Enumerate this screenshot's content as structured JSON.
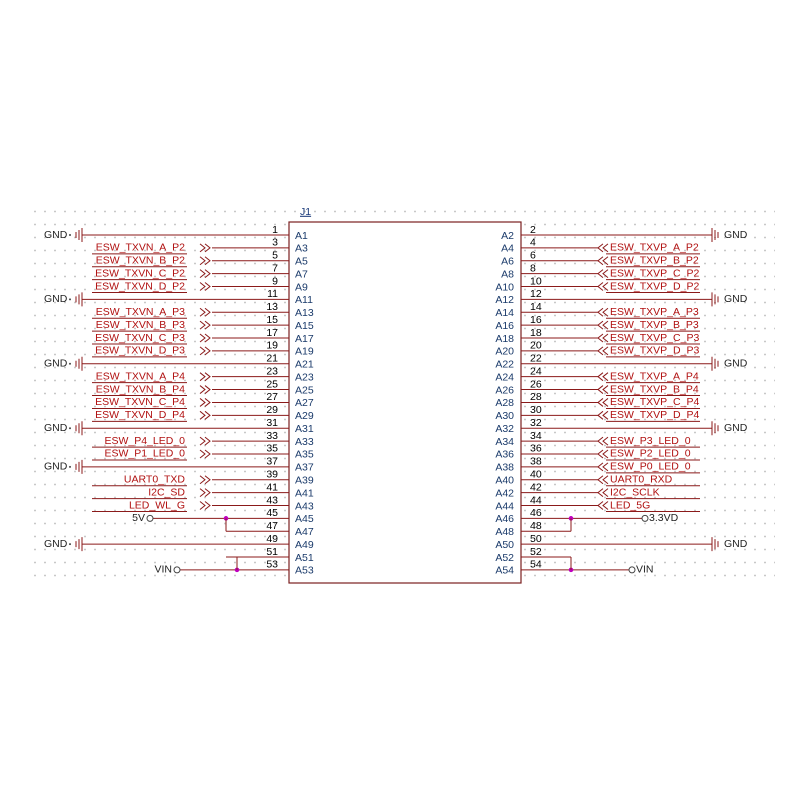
{
  "component": {
    "designator": "J1",
    "left_pins": [
      {
        "number": "1",
        "label": "A1",
        "net": "GND"
      },
      {
        "number": "3",
        "label": "A3",
        "net": "ESW_TXVN_A_P2"
      },
      {
        "number": "5",
        "label": "A5",
        "net": "ESW_TXVN_B_P2"
      },
      {
        "number": "7",
        "label": "A7",
        "net": "ESW_TXVN_C_P2"
      },
      {
        "number": "9",
        "label": "A9",
        "net": "ESW_TXVN_D_P2"
      },
      {
        "number": "11",
        "label": "A11",
        "net": "GND"
      },
      {
        "number": "13",
        "label": "A13",
        "net": "ESW_TXVN_A_P3"
      },
      {
        "number": "15",
        "label": "A15",
        "net": "ESW_TXVN_B_P3"
      },
      {
        "number": "17",
        "label": "A17",
        "net": "ESW_TXVN_C_P3"
      },
      {
        "number": "19",
        "label": "A19",
        "net": "ESW_TXVN_D_P3"
      },
      {
        "number": "21",
        "label": "A21",
        "net": "GND"
      },
      {
        "number": "23",
        "label": "A23",
        "net": "ESW_TXVN_A_P4"
      },
      {
        "number": "25",
        "label": "A25",
        "net": "ESW_TXVN_B_P4"
      },
      {
        "number": "27",
        "label": "A27",
        "net": "ESW_TXVN_C_P4"
      },
      {
        "number": "29",
        "label": "A29",
        "net": "ESW_TXVN_D_P4"
      },
      {
        "number": "31",
        "label": "A31",
        "net": "GND"
      },
      {
        "number": "33",
        "label": "A33",
        "net": "ESW_P4_LED_0"
      },
      {
        "number": "35",
        "label": "A35",
        "net": "ESW_P1_LED_0"
      },
      {
        "number": "37",
        "label": "A37",
        "net": "GND"
      },
      {
        "number": "39",
        "label": "A39",
        "net": "UART0_TXD"
      },
      {
        "number": "41",
        "label": "A41",
        "net": "I2C_SD"
      },
      {
        "number": "43",
        "label": "A43",
        "net": "LED_WL_G"
      },
      {
        "number": "45",
        "label": "A45",
        "net": "5V"
      },
      {
        "number": "47",
        "label": "A47",
        "net": null
      },
      {
        "number": "49",
        "label": "A49",
        "net": "GND"
      },
      {
        "number": "51",
        "label": "A51",
        "net": null
      },
      {
        "number": "53",
        "label": "A53",
        "net": "VIN"
      }
    ],
    "right_pins": [
      {
        "number": "2",
        "label": "A2",
        "net": "GND"
      },
      {
        "number": "4",
        "label": "A4",
        "net": "ESW_TXVP_A_P2"
      },
      {
        "number": "6",
        "label": "A6",
        "net": "ESW_TXVP_B_P2"
      },
      {
        "number": "8",
        "label": "A8",
        "net": "ESW_TXVP_C_P2"
      },
      {
        "number": "10",
        "label": "A10",
        "net": "ESW_TXVP_D_P2"
      },
      {
        "number": "12",
        "label": "A12",
        "net": "GND"
      },
      {
        "number": "14",
        "label": "A14",
        "net": "ESW_TXVP_A_P3"
      },
      {
        "number": "16",
        "label": "A16",
        "net": "ESW_TXVP_B_P3"
      },
      {
        "number": "18",
        "label": "A18",
        "net": "ESW_TXVP_C_P3"
      },
      {
        "number": "20",
        "label": "A20",
        "net": "ESW_TXVP_D_P3"
      },
      {
        "number": "22",
        "label": "A22",
        "net": "GND"
      },
      {
        "number": "24",
        "label": "A24",
        "net": "ESW_TXVP_A_P4"
      },
      {
        "number": "26",
        "label": "A26",
        "net": "ESW_TXVP_B_P4"
      },
      {
        "number": "28",
        "label": "A28",
        "net": "ESW_TXVP_C_P4"
      },
      {
        "number": "30",
        "label": "A30",
        "net": "ESW_TXVP_D_P4"
      },
      {
        "number": "32",
        "label": "A32",
        "net": "GND"
      },
      {
        "number": "34",
        "label": "A34",
        "net": "ESW_P3_LED_0"
      },
      {
        "number": "36",
        "label": "A36",
        "net": "ESW_P2_LED_0"
      },
      {
        "number": "38",
        "label": "A38",
        "net": "ESW_P0_LED_0"
      },
      {
        "number": "40",
        "label": "A40",
        "net": "UART0_RXD"
      },
      {
        "number": "42",
        "label": "A42",
        "net": "I2C_SCLK"
      },
      {
        "number": "44",
        "label": "A44",
        "net": "LED_5G"
      },
      {
        "number": "46",
        "label": "A46",
        "net": "3.3VD"
      },
      {
        "number": "48",
        "label": "A48",
        "net": null
      },
      {
        "number": "50",
        "label": "A50",
        "net": "GND"
      },
      {
        "number": "52",
        "label": "A52",
        "net": null
      },
      {
        "number": "54",
        "label": "A54",
        "net": "VIN"
      }
    ]
  }
}
